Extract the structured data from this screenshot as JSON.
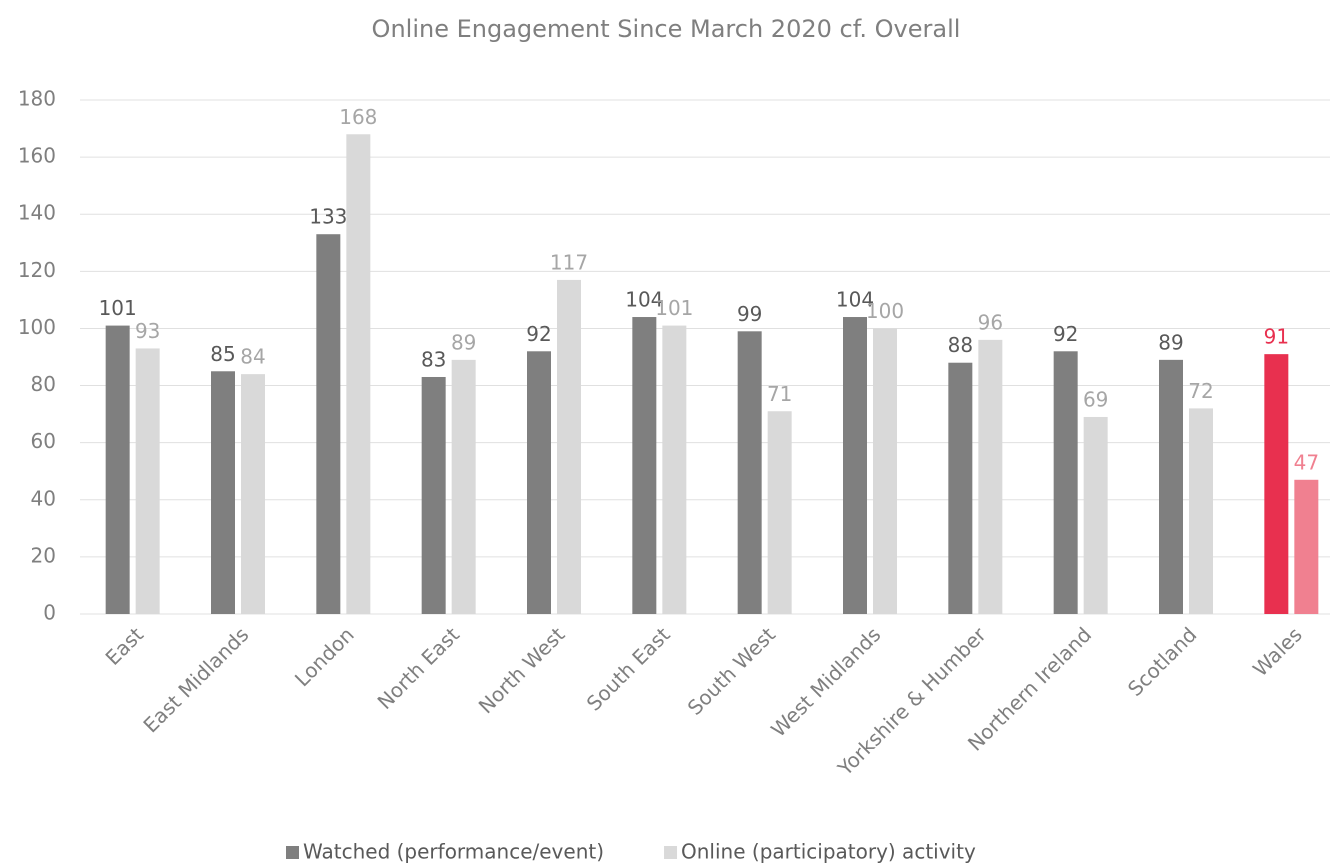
{
  "chart_data": {
    "type": "bar",
    "title": "Online Engagement Since March 2020 cf. Overall",
    "categories": [
      "East",
      "East Midlands",
      "London",
      "North East",
      "North West",
      "South East",
      "South West",
      "West Midlands",
      "Yorkshire & Humber",
      "Northern Ireland",
      "Scotland",
      "Wales"
    ],
    "series": [
      {
        "name": "Watched (performance/event)",
        "color": "#7f7f7f",
        "colors": [
          "#7f7f7f",
          "#7f7f7f",
          "#7f7f7f",
          "#7f7f7f",
          "#7f7f7f",
          "#7f7f7f",
          "#7f7f7f",
          "#7f7f7f",
          "#7f7f7f",
          "#7f7f7f",
          "#7f7f7f",
          "#e8304f"
        ],
        "values": [
          101,
          85,
          133,
          83,
          92,
          104,
          99,
          104,
          88,
          92,
          89,
          91
        ]
      },
      {
        "name": "Online (participatory) activity",
        "color": "#d9d9d9",
        "colors": [
          "#d9d9d9",
          "#d9d9d9",
          "#d9d9d9",
          "#d9d9d9",
          "#d9d9d9",
          "#d9d9d9",
          "#d9d9d9",
          "#d9d9d9",
          "#d9d9d9",
          "#d9d9d9",
          "#d9d9d9",
          "#f08090"
        ],
        "values": [
          93,
          84,
          168,
          89,
          117,
          101,
          71,
          100,
          96,
          69,
          72,
          47
        ]
      }
    ],
    "ylim": [
      0,
      180
    ],
    "yticks": [
      0,
      20,
      40,
      60,
      80,
      100,
      120,
      140,
      160,
      180
    ],
    "grid": true,
    "legend": "bottom"
  }
}
